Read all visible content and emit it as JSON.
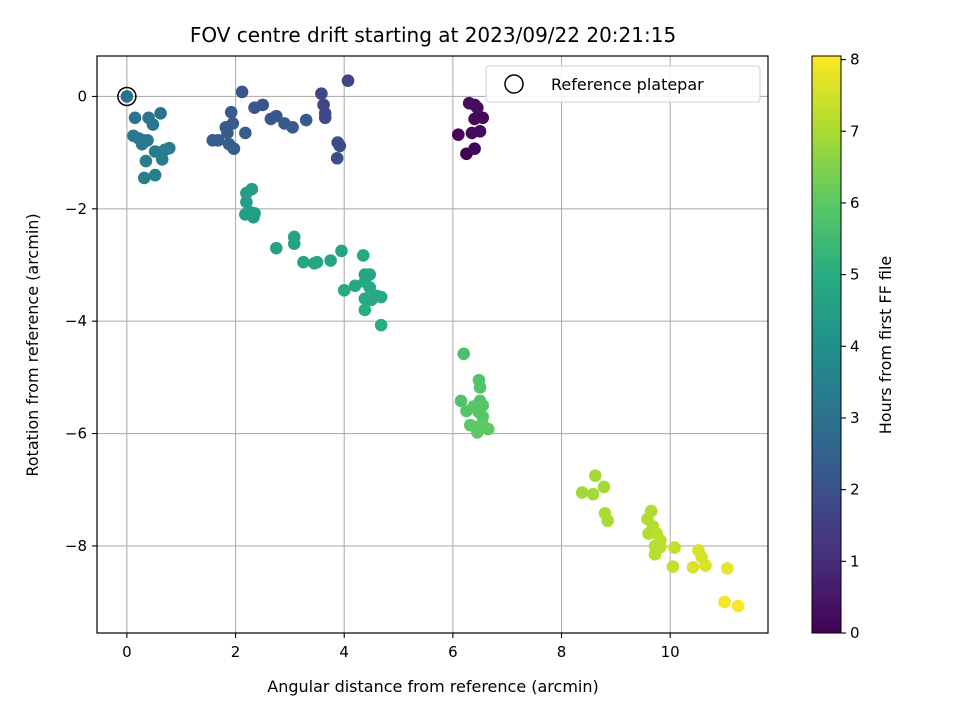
{
  "chart_data": {
    "type": "scatter",
    "title": "FOV centre drift starting at 2023/09/22 20:21:15",
    "xlabel": "Angular distance from reference (arcmin)",
    "ylabel": "Rotation from reference (arcmin)",
    "xlim": [
      -0.55,
      11.8
    ],
    "ylim": [
      -9.55,
      0.72
    ],
    "xticks": [
      0,
      2,
      4,
      6,
      8,
      10
    ],
    "yticks": [
      0,
      -2,
      -4,
      -6,
      -8
    ],
    "grid": true,
    "legend": {
      "placement": "top-right",
      "entries": [
        "Reference platepar"
      ]
    },
    "colorbar": {
      "label": "Hours from first FF file",
      "range": [
        0,
        8.05
      ],
      "ticks": [
        0,
        1,
        2,
        3,
        4,
        5,
        6,
        7,
        8
      ],
      "colormap": "viridis"
    },
    "reference_point": {
      "x": 0,
      "y": 0,
      "label": "Reference platepar"
    },
    "points": [
      {
        "x": 0.0,
        "y": 0.0,
        "h": 3.0
      },
      {
        "x": 6.3,
        "y": -0.12,
        "h": 0.3
      },
      {
        "x": 6.4,
        "y": -0.15,
        "h": 0.3
      },
      {
        "x": 6.45,
        "y": -0.2,
        "h": 0.3
      },
      {
        "x": 6.4,
        "y": -0.4,
        "h": 0.2
      },
      {
        "x": 6.55,
        "y": -0.38,
        "h": 0.2
      },
      {
        "x": 6.1,
        "y": -0.68,
        "h": 0.1
      },
      {
        "x": 6.35,
        "y": -0.65,
        "h": 0.2
      },
      {
        "x": 6.5,
        "y": -0.62,
        "h": 0.2
      },
      {
        "x": 6.25,
        "y": -1.02,
        "h": 0.0
      },
      {
        "x": 6.4,
        "y": -0.93,
        "h": 0.1
      },
      {
        "x": 4.07,
        "y": 0.28,
        "h": 1.6
      },
      {
        "x": 3.58,
        "y": 0.05,
        "h": 1.7
      },
      {
        "x": 3.62,
        "y": -0.15,
        "h": 1.7
      },
      {
        "x": 3.65,
        "y": -0.3,
        "h": 1.8
      },
      {
        "x": 3.65,
        "y": -0.38,
        "h": 1.8
      },
      {
        "x": 3.88,
        "y": -0.82,
        "h": 1.9
      },
      {
        "x": 3.92,
        "y": -0.88,
        "h": 1.9
      },
      {
        "x": 3.87,
        "y": -1.1,
        "h": 1.9
      },
      {
        "x": 2.12,
        "y": 0.08,
        "h": 2.1
      },
      {
        "x": 2.35,
        "y": -0.2,
        "h": 2.2
      },
      {
        "x": 2.5,
        "y": -0.15,
        "h": 2.2
      },
      {
        "x": 1.92,
        "y": -0.28,
        "h": 2.3
      },
      {
        "x": 2.65,
        "y": -0.4,
        "h": 2.2
      },
      {
        "x": 2.75,
        "y": -0.35,
        "h": 2.2
      },
      {
        "x": 2.9,
        "y": -0.48,
        "h": 2.3
      },
      {
        "x": 3.05,
        "y": -0.55,
        "h": 2.3
      },
      {
        "x": 3.3,
        "y": -0.42,
        "h": 2.3
      },
      {
        "x": 1.95,
        "y": -0.48,
        "h": 2.3
      },
      {
        "x": 1.82,
        "y": -0.55,
        "h": 2.3
      },
      {
        "x": 1.85,
        "y": -0.65,
        "h": 2.3
      },
      {
        "x": 2.18,
        "y": -0.65,
        "h": 2.4
      },
      {
        "x": 1.58,
        "y": -0.78,
        "h": 2.4
      },
      {
        "x": 1.68,
        "y": -0.78,
        "h": 2.4
      },
      {
        "x": 1.88,
        "y": -0.85,
        "h": 2.4
      },
      {
        "x": 1.97,
        "y": -0.93,
        "h": 2.4
      },
      {
        "x": 0.15,
        "y": -0.38,
        "h": 3.1
      },
      {
        "x": 0.4,
        "y": -0.38,
        "h": 3.1
      },
      {
        "x": 0.48,
        "y": -0.5,
        "h": 3.1
      },
      {
        "x": 0.62,
        "y": -0.3,
        "h": 3.0
      },
      {
        "x": 0.12,
        "y": -0.7,
        "h": 3.2
      },
      {
        "x": 0.22,
        "y": -0.75,
        "h": 3.2
      },
      {
        "x": 0.3,
        "y": -0.78,
        "h": 3.2
      },
      {
        "x": 0.38,
        "y": -0.78,
        "h": 3.2
      },
      {
        "x": 0.28,
        "y": -0.85,
        "h": 3.2
      },
      {
        "x": 0.52,
        "y": -0.98,
        "h": 3.3
      },
      {
        "x": 0.62,
        "y": -1.0,
        "h": 3.3
      },
      {
        "x": 0.7,
        "y": -0.95,
        "h": 3.3
      },
      {
        "x": 0.78,
        "y": -0.92,
        "h": 3.3
      },
      {
        "x": 0.65,
        "y": -1.12,
        "h": 3.3
      },
      {
        "x": 0.35,
        "y": -1.15,
        "h": 3.4
      },
      {
        "x": 0.32,
        "y": -1.45,
        "h": 3.4
      },
      {
        "x": 0.52,
        "y": -1.4,
        "h": 3.4
      },
      {
        "x": 2.3,
        "y": -1.65,
        "h": 4.4
      },
      {
        "x": 2.2,
        "y": -1.72,
        "h": 4.4
      },
      {
        "x": 2.2,
        "y": -1.88,
        "h": 4.5
      },
      {
        "x": 2.25,
        "y": -2.05,
        "h": 4.5
      },
      {
        "x": 2.18,
        "y": -2.1,
        "h": 4.5
      },
      {
        "x": 2.35,
        "y": -2.08,
        "h": 4.5
      },
      {
        "x": 2.33,
        "y": -2.15,
        "h": 4.5
      },
      {
        "x": 3.08,
        "y": -2.5,
        "h": 4.6
      },
      {
        "x": 3.08,
        "y": -2.62,
        "h": 4.6
      },
      {
        "x": 2.75,
        "y": -2.7,
        "h": 4.6
      },
      {
        "x": 3.95,
        "y": -2.75,
        "h": 4.7
      },
      {
        "x": 3.25,
        "y": -2.95,
        "h": 4.7
      },
      {
        "x": 3.45,
        "y": -2.97,
        "h": 4.7
      },
      {
        "x": 3.5,
        "y": -2.95,
        "h": 4.7
      },
      {
        "x": 3.75,
        "y": -2.92,
        "h": 4.7
      },
      {
        "x": 4.35,
        "y": -2.83,
        "h": 4.8
      },
      {
        "x": 4.38,
        "y": -3.17,
        "h": 4.8
      },
      {
        "x": 4.47,
        "y": -3.17,
        "h": 4.8
      },
      {
        "x": 4.38,
        "y": -3.3,
        "h": 4.8
      },
      {
        "x": 4.2,
        "y": -3.37,
        "h": 4.8
      },
      {
        "x": 4.47,
        "y": -3.4,
        "h": 4.9
      },
      {
        "x": 4.0,
        "y": -3.45,
        "h": 4.9
      },
      {
        "x": 4.6,
        "y": -3.55,
        "h": 4.9
      },
      {
        "x": 4.38,
        "y": -3.6,
        "h": 4.9
      },
      {
        "x": 4.5,
        "y": -3.62,
        "h": 4.9
      },
      {
        "x": 4.68,
        "y": -3.57,
        "h": 4.9
      },
      {
        "x": 4.38,
        "y": -3.8,
        "h": 5.0
      },
      {
        "x": 4.68,
        "y": -4.07,
        "h": 5.0
      },
      {
        "x": 6.2,
        "y": -4.58,
        "h": 5.7
      },
      {
        "x": 6.48,
        "y": -5.05,
        "h": 5.8
      },
      {
        "x": 6.5,
        "y": -5.18,
        "h": 5.8
      },
      {
        "x": 6.15,
        "y": -5.42,
        "h": 5.8
      },
      {
        "x": 6.5,
        "y": -5.42,
        "h": 5.8
      },
      {
        "x": 6.38,
        "y": -5.52,
        "h": 5.9
      },
      {
        "x": 6.55,
        "y": -5.5,
        "h": 5.9
      },
      {
        "x": 6.25,
        "y": -5.6,
        "h": 5.9
      },
      {
        "x": 6.48,
        "y": -5.62,
        "h": 5.9
      },
      {
        "x": 6.55,
        "y": -5.7,
        "h": 5.9
      },
      {
        "x": 6.32,
        "y": -5.85,
        "h": 6.0
      },
      {
        "x": 6.45,
        "y": -5.88,
        "h": 6.0
      },
      {
        "x": 6.55,
        "y": -5.85,
        "h": 6.0
      },
      {
        "x": 6.65,
        "y": -5.92,
        "h": 6.0
      },
      {
        "x": 6.45,
        "y": -5.98,
        "h": 6.0
      },
      {
        "x": 8.62,
        "y": -6.75,
        "h": 6.9
      },
      {
        "x": 8.38,
        "y": -7.05,
        "h": 6.9
      },
      {
        "x": 8.58,
        "y": -7.08,
        "h": 6.9
      },
      {
        "x": 8.78,
        "y": -6.95,
        "h": 6.9
      },
      {
        "x": 8.8,
        "y": -7.42,
        "h": 7.0
      },
      {
        "x": 8.85,
        "y": -7.55,
        "h": 7.0
      },
      {
        "x": 9.65,
        "y": -7.38,
        "h": 7.1
      },
      {
        "x": 9.58,
        "y": -7.52,
        "h": 7.1
      },
      {
        "x": 9.68,
        "y": -7.65,
        "h": 7.1
      },
      {
        "x": 9.6,
        "y": -7.78,
        "h": 7.1
      },
      {
        "x": 9.75,
        "y": -7.78,
        "h": 7.2
      },
      {
        "x": 9.82,
        "y": -7.9,
        "h": 7.2
      },
      {
        "x": 9.72,
        "y": -8.0,
        "h": 7.2
      },
      {
        "x": 9.82,
        "y": -8.02,
        "h": 7.2
      },
      {
        "x": 9.72,
        "y": -8.15,
        "h": 7.2
      },
      {
        "x": 10.08,
        "y": -8.03,
        "h": 7.3
      },
      {
        "x": 10.05,
        "y": -8.37,
        "h": 7.3
      },
      {
        "x": 10.52,
        "y": -8.08,
        "h": 7.6
      },
      {
        "x": 10.58,
        "y": -8.2,
        "h": 7.6
      },
      {
        "x": 10.65,
        "y": -8.35,
        "h": 7.6
      },
      {
        "x": 10.42,
        "y": -8.38,
        "h": 7.6
      },
      {
        "x": 11.05,
        "y": -8.4,
        "h": 7.8
      },
      {
        "x": 11.0,
        "y": -9.0,
        "h": 8.0
      },
      {
        "x": 11.25,
        "y": -9.07,
        "h": 8.0
      }
    ]
  }
}
